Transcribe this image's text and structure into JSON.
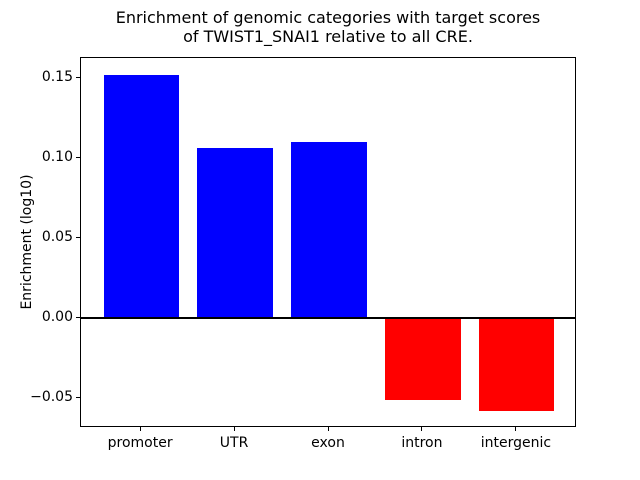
{
  "chart_data": {
    "type": "bar",
    "title": "Enrichment of genomic categories with target scores of TWIST1_SNAI1 relative to all CRE.",
    "title_lines": [
      "Enrichment of genomic categories with target scores",
      "of TWIST1_SNAI1 relative to all CRE."
    ],
    "categories": [
      "promoter",
      "UTR",
      "exon",
      "intron",
      "intergenic"
    ],
    "values": [
      0.152,
      0.106,
      0.11,
      -0.051,
      -0.058
    ],
    "positive_color": "#0000ff",
    "negative_color": "#ff0000",
    "ylabel": "Enrichment (log10)",
    "xlabel": "",
    "yticks": [
      -0.05,
      0.0,
      0.05,
      0.1,
      0.15
    ],
    "ytick_labels": [
      "−0.05",
      "0.00",
      "0.05",
      "0.10",
      "0.15"
    ],
    "ylim": [
      -0.0685,
      0.1625
    ],
    "xlim": [
      -0.64,
      4.64
    ],
    "bar_width": 0.8,
    "grid": false,
    "zero_line": true,
    "legend_position": "none"
  }
}
